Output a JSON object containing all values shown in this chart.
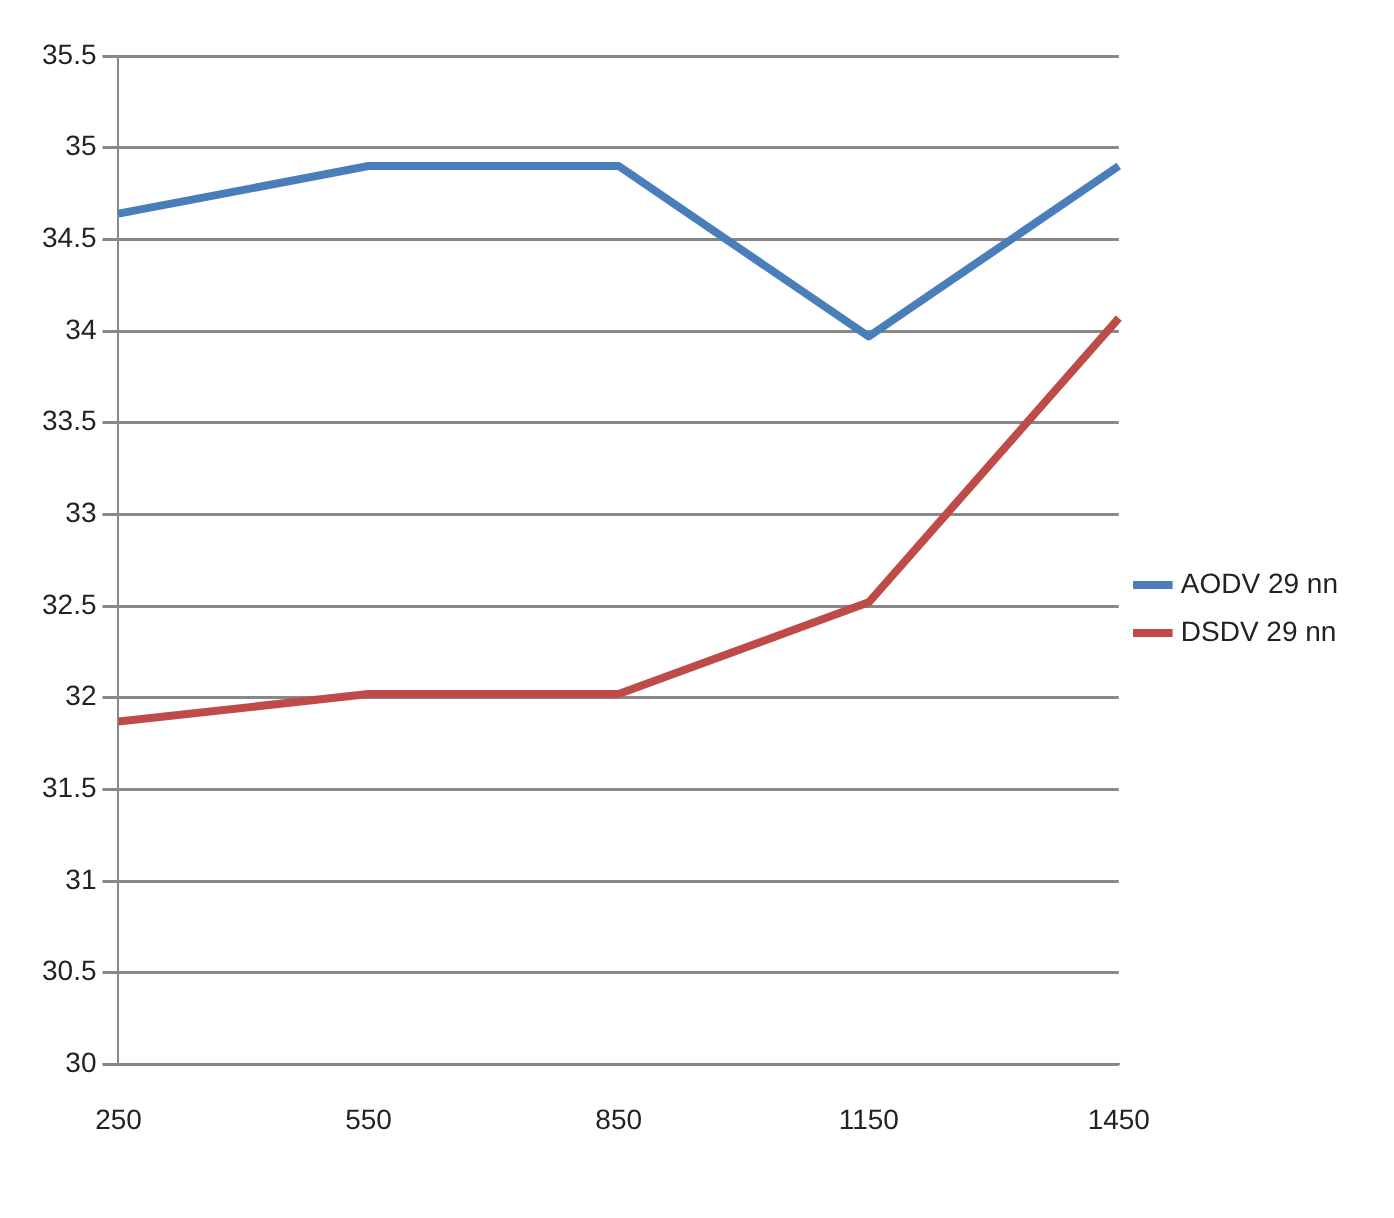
{
  "chart_data": {
    "type": "line",
    "categories": [
      "250",
      "550",
      "850",
      "1150",
      "1450"
    ],
    "series": [
      {
        "name": "AODV 29 nn",
        "color": "#4a7ebb",
        "values": [
          34.64,
          34.9,
          34.9,
          33.97,
          34.9
        ]
      },
      {
        "name": "DSDV 29 nn",
        "color": "#be4b48",
        "values": [
          31.87,
          32.02,
          32.02,
          32.52,
          34.07
        ]
      }
    ],
    "ylim": [
      30,
      35.5
    ],
    "yticks": [
      30,
      30.5,
      31,
      31.5,
      32,
      32.5,
      33,
      33.5,
      34,
      34.5,
      35,
      35.5
    ],
    "grid": "y",
    "legend": "right",
    "marker": "none",
    "line_style": "solid"
  }
}
